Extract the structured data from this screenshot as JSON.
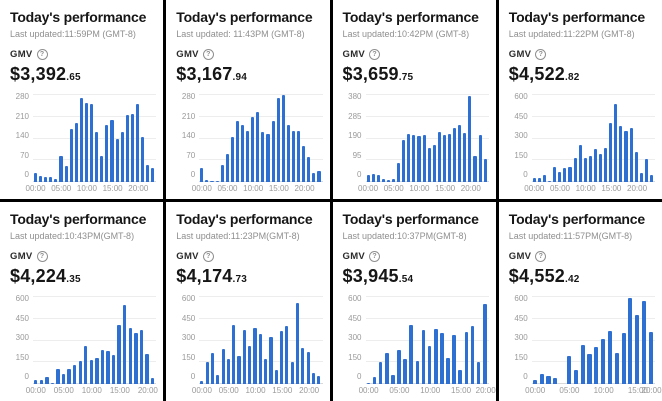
{
  "accent_color": "#2e6fd2",
  "grid_color": "#ededed",
  "help_icon_glyph": "?",
  "cards": [
    {
      "title": "Today's performance",
      "last_updated": "Last updated:11:59PM (GMT-8)",
      "gmv_label": "GMV",
      "gmv_main": "$3,392",
      "gmv_cents": ".65"
    },
    {
      "title": "Today's performance",
      "last_updated": "Last updated: 11:43PM (GMT-8)",
      "gmv_label": "GMV",
      "gmv_main": "$3,167",
      "gmv_cents": ".94"
    },
    {
      "title": "Today's performance",
      "last_updated": "Last updated:10:42PM (GMT-8)",
      "gmv_label": "GMV",
      "gmv_main": "$3,659",
      "gmv_cents": ".75"
    },
    {
      "title": "Today's performance",
      "last_updated": "Last updated:11:22PM (GMT-8)",
      "gmv_label": "GMV",
      "gmv_main": "$4,522",
      "gmv_cents": ".82"
    },
    {
      "title": "Today's performance",
      "last_updated": "Last updated:10:43PM(GMT-8)",
      "gmv_label": "GMV",
      "gmv_main": "$4,224",
      "gmv_cents": ".35"
    },
    {
      "title": "Today's performance",
      "last_updated": "Last updated:11:23PM(GMT-8)",
      "gmv_label": "GMV",
      "gmv_main": "$4,174",
      "gmv_cents": ".73"
    },
    {
      "title": "Today's performance",
      "last_updated": "Last updated:10:37PM(GMT-8)",
      "gmv_label": "GMV",
      "gmv_main": "$3,945",
      "gmv_cents": ".54"
    },
    {
      "title": "Today's performance",
      "last_updated": "Last updated:11:57PM(GMT-8)",
      "gmv_label": "GMV",
      "gmv_main": "$4,552",
      "gmv_cents": ".42"
    }
  ],
  "chart_data": [
    {
      "type": "bar",
      "title": "Today's performance",
      "metric": "GMV",
      "gmv": "$3,392.65",
      "x_unit": "hour",
      "x_tick_labels": [
        "00:00",
        "05:00",
        "10:00",
        "15:00",
        "20:00"
      ],
      "y_ticks": [
        0,
        70,
        140,
        210,
        280
      ],
      "ylim": [
        0,
        280
      ],
      "values": [
        30,
        18,
        15,
        15,
        10,
        85,
        50,
        170,
        190,
        270,
        255,
        250,
        160,
        85,
        185,
        200,
        140,
        160,
        215,
        218,
        250,
        145,
        55,
        45
      ]
    },
    {
      "type": "bar",
      "title": "Today's performance",
      "metric": "GMV",
      "gmv": "$3,167.94",
      "x_unit": "hour",
      "x_tick_labels": [
        "00:00",
        "05:00",
        "10:00",
        "15:00",
        "20:00"
      ],
      "y_ticks": [
        0,
        70,
        140,
        210,
        280
      ],
      "ylim": [
        0,
        280
      ],
      "values": [
        45,
        8,
        2,
        3,
        55,
        90,
        145,
        195,
        185,
        165,
        210,
        225,
        160,
        155,
        195,
        270,
        280,
        185,
        165,
        165,
        115,
        80,
        30,
        35
      ]
    },
    {
      "type": "bar",
      "title": "Today's performance",
      "metric": "GMV",
      "gmv": "$3,659.75",
      "x_unit": "hour",
      "x_tick_labels": [
        "00:00",
        "05:00",
        "10:00",
        "15:00",
        "20:00"
      ],
      "y_ticks": [
        0,
        95,
        190,
        285,
        380
      ],
      "ylim": [
        0,
        380
      ],
      "values": [
        30,
        35,
        30,
        15,
        10,
        15,
        85,
        185,
        210,
        205,
        200,
        205,
        150,
        160,
        220,
        205,
        210,
        235,
        250,
        215,
        375,
        115,
        205,
        100
      ]
    },
    {
      "type": "bar",
      "title": "Today's performance",
      "metric": "GMV",
      "gmv": "$4,522.82",
      "x_unit": "hour",
      "x_tick_labels": [
        "00:00",
        "05:00",
        "10:00",
        "15:00",
        "20:00"
      ],
      "y_ticks": [
        0,
        150,
        300,
        450,
        600
      ],
      "ylim": [
        0,
        600
      ],
      "values": [
        30,
        25,
        50,
        10,
        105,
        70,
        100,
        105,
        165,
        255,
        165,
        180,
        230,
        195,
        235,
        405,
        540,
        385,
        350,
        370,
        205,
        65,
        160,
        50
      ]
    },
    {
      "type": "bar",
      "title": "Today's performance",
      "metric": "GMV",
      "gmv": "$4,224.35",
      "x_unit": "hour",
      "x_tick_labels": [
        "00:00",
        "05:00",
        "10:00",
        "15:00",
        "20:00"
      ],
      "y_ticks": [
        0,
        150,
        300,
        450,
        600
      ],
      "ylim": [
        0,
        600
      ],
      "values": [
        25,
        30,
        45,
        10,
        105,
        70,
        105,
        130,
        160,
        260,
        165,
        180,
        235,
        230,
        200,
        410,
        545,
        385,
        350,
        375,
        205,
        40
      ]
    },
    {
      "type": "bar",
      "title": "Today's performance",
      "metric": "GMV",
      "gmv": "$4,174.73",
      "x_unit": "hour",
      "x_tick_labels": [
        "00:00",
        "05:00",
        "10:00",
        "15:00",
        "20:00"
      ],
      "y_ticks": [
        0,
        150,
        300,
        450,
        600
      ],
      "ylim": [
        0,
        600
      ],
      "values": [
        20,
        155,
        215,
        60,
        240,
        175,
        410,
        190,
        370,
        260,
        385,
        345,
        175,
        325,
        100,
        365,
        400,
        150,
        560,
        245,
        220,
        75,
        55
      ]
    },
    {
      "type": "bar",
      "title": "Today's performance",
      "metric": "GMV",
      "gmv": "$3,945.54",
      "x_unit": "hour",
      "x_tick_labels": [
        "00:00",
        "05:00",
        "10:00",
        "15:00",
        "20:00"
      ],
      "y_ticks": [
        0,
        150,
        300,
        450,
        600
      ],
      "ylim": [
        0,
        600
      ],
      "values": [
        5,
        45,
        150,
        215,
        60,
        235,
        170,
        410,
        160,
        375,
        260,
        380,
        350,
        180,
        335,
        100,
        360,
        400,
        150,
        555
      ]
    },
    {
      "type": "bar",
      "title": "Today's performance",
      "metric": "GMV",
      "gmv": "$4,552.42",
      "x_unit": "hour",
      "x_tick_labels": [
        "00:00",
        "05:00",
        "10:00",
        "15:00",
        "20:00"
      ],
      "y_ticks": [
        0,
        150,
        300,
        450,
        600
      ],
      "ylim": [
        0,
        600
      ],
      "values": [
        25,
        70,
        55,
        40,
        0,
        190,
        100,
        270,
        210,
        255,
        310,
        365,
        215,
        355,
        595,
        475,
        570,
        360
      ]
    }
  ]
}
